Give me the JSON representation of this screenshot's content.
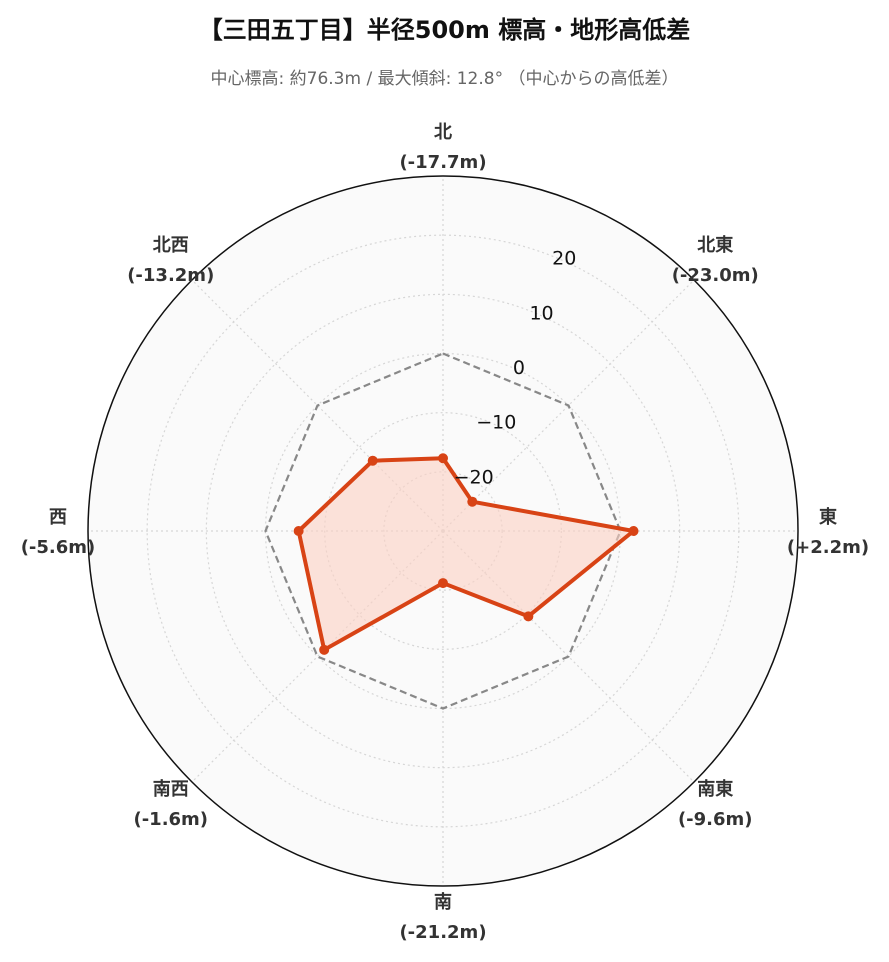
{
  "chart_data": {
    "type": "radar",
    "title": "【三田五丁目】半径500m 標高・地形高低差",
    "subtitle": "中心標高: 約76.3m / 最大傾斜: 12.8°  （中心からの高低差）",
    "categories": [
      {
        "name": "北",
        "value_label": "(-17.7m)"
      },
      {
        "name": "北東",
        "value_label": "(-23.0m)"
      },
      {
        "name": "東",
        "value_label": "(+2.2m)"
      },
      {
        "name": "南東",
        "value_label": "(-9.6m)"
      },
      {
        "name": "南",
        "value_label": "(-21.2m)"
      },
      {
        "name": "南西",
        "value_label": "(-1.6m)"
      },
      {
        "name": "西",
        "value_label": "(-5.6m)"
      },
      {
        "name": "北西",
        "value_label": "(-13.2m)"
      }
    ],
    "series": [
      {
        "values": [
          -17.7,
          -23.0,
          2.2,
          -9.6,
          -21.2,
          -1.6,
          -5.6,
          -13.2
        ],
        "color": "#d84315",
        "fill": "#fbd0c3"
      }
    ],
    "reference": {
      "value": 0,
      "style": "dashed",
      "color": "#888888"
    },
    "radial_ticks": [
      -20,
      -10,
      0,
      10,
      20
    ],
    "radial_range": [
      -30,
      30
    ],
    "grid": true,
    "background": "#fafafa"
  }
}
